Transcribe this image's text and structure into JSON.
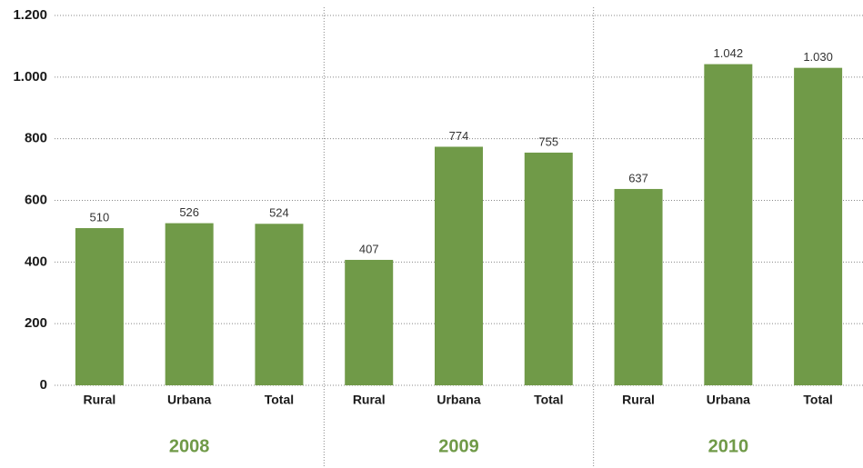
{
  "chart_data": {
    "type": "bar",
    "categories": [
      "Rural",
      "Urbana",
      "Total",
      "Rural",
      "Urbana",
      "Total",
      "Rural",
      "Urbana",
      "Total"
    ],
    "groups": [
      "2008",
      "2009",
      "2010"
    ],
    "values": [
      510,
      526,
      524,
      407,
      774,
      755,
      637,
      1042,
      1030
    ],
    "value_labels": [
      "510",
      "526",
      "524",
      "407",
      "774",
      "755",
      "637",
      "1.042",
      "1.030"
    ],
    "color": "#709a48",
    "ylim": [
      0,
      1200
    ],
    "yticks": [
      0,
      200,
      400,
      600,
      800,
      {
        "value": 1000,
        "label": "1.000"
      },
      {
        "value": 1200,
        "label": "1.200"
      }
    ],
    "grid": true
  }
}
